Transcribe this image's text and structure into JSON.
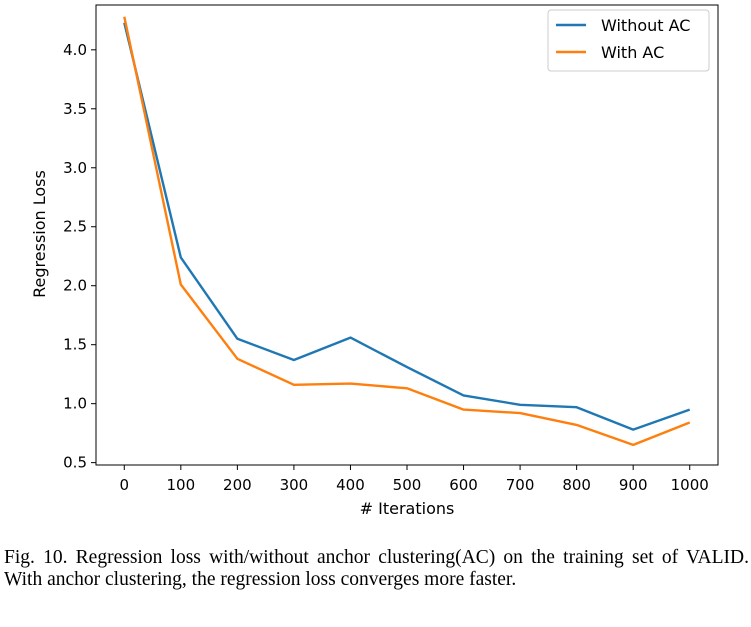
{
  "chart_data": {
    "type": "line",
    "xlabel": "# Iterations",
    "ylabel": "Regression Loss",
    "xlim": [
      -50,
      1050
    ],
    "ylim": [
      0.48,
      4.38
    ],
    "x_ticks": [
      0,
      100,
      200,
      300,
      400,
      500,
      600,
      700,
      800,
      900,
      1000
    ],
    "y_ticks": [
      0.5,
      1.0,
      1.5,
      2.0,
      2.5,
      3.0,
      3.5,
      4.0
    ],
    "grid": false,
    "legend_position": "top-right",
    "x": [
      0,
      100,
      200,
      300,
      400,
      500,
      600,
      700,
      800,
      900,
      1000
    ],
    "series": [
      {
        "name": "Without AC",
        "color": "#1f77b4",
        "values": [
          4.23,
          2.24,
          1.55,
          1.37,
          1.56,
          1.31,
          1.07,
          0.99,
          0.97,
          0.78,
          0.95
        ]
      },
      {
        "name": "With AC",
        "color": "#ff7f0e",
        "values": [
          4.28,
          2.01,
          1.38,
          1.16,
          1.17,
          1.13,
          0.95,
          0.92,
          0.82,
          0.65,
          0.84
        ]
      }
    ]
  },
  "caption": "Fig. 10.  Regression loss with/without anchor clustering(AC) on the training set of VALID. With anchor clustering, the regression loss converges more faster."
}
